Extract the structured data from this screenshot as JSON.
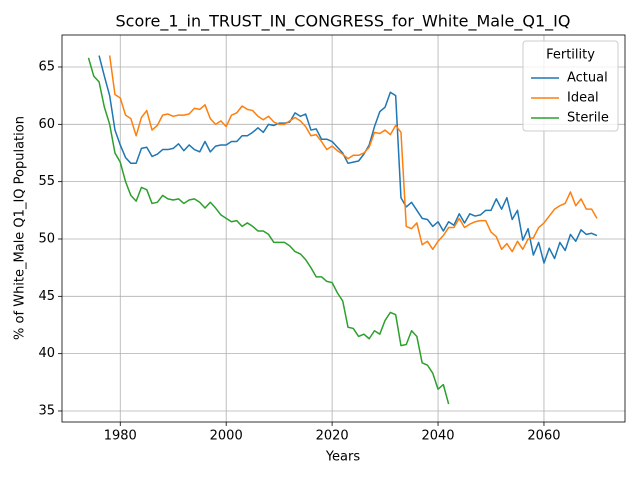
{
  "chart_data": {
    "type": "line",
    "title": "Score_1_in_TRUST_IN_CONGRESS_for_White_Male_Q1_IQ",
    "x_label": "Years",
    "y_label": "% of White_Male Q1_IQ Population",
    "legend_title": "Fertility",
    "legend_position": "upper right",
    "grid": true,
    "xlim": [
      1969,
      2075.3
    ],
    "ylim": [
      34.04,
      67.79
    ],
    "xticks": [
      1980,
      2000,
      2020,
      2040,
      2060
    ],
    "yticks": [
      35,
      40,
      45,
      50,
      55,
      60,
      65
    ],
    "x": [
      1974,
      1975,
      1976,
      1977,
      1978,
      1979,
      1980,
      1981,
      1982,
      1983,
      1984,
      1985,
      1986,
      1987,
      1988,
      1989,
      1990,
      1991,
      1992,
      1993,
      1994,
      1995,
      1996,
      1997,
      1998,
      1999,
      2000,
      2001,
      2002,
      2003,
      2004,
      2005,
      2006,
      2007,
      2008,
      2009,
      2010,
      2011,
      2012,
      2013,
      2014,
      2015,
      2016,
      2017,
      2018,
      2019,
      2020,
      2021,
      2022,
      2023,
      2024,
      2025,
      2026,
      2027,
      2028,
      2029,
      2030,
      2031,
      2032,
      2033,
      2034,
      2035,
      2036,
      2037,
      2038,
      2039,
      2040,
      2041,
      2042,
      2043,
      2044,
      2045,
      2046,
      2047,
      2048,
      2049,
      2050,
      2051,
      2052,
      2053,
      2054,
      2055,
      2056,
      2057,
      2058,
      2059,
      2060,
      2061,
      2062,
      2063,
      2064,
      2065,
      2066,
      2067,
      2068,
      2069,
      2070
    ],
    "series": [
      {
        "name": "Actual",
        "color": "#1f77b4",
        "values": [
          null,
          null,
          66.0,
          64.2,
          62.5,
          59.5,
          58.2,
          57.1,
          56.6,
          56.6,
          57.9,
          58.0,
          57.2,
          57.4,
          57.8,
          57.8,
          57.9,
          58.3,
          57.7,
          58.2,
          57.8,
          57.6,
          58.5,
          57.6,
          58.1,
          58.2,
          58.2,
          58.5,
          58.5,
          59.0,
          59.0,
          59.3,
          59.7,
          59.3,
          60.0,
          59.9,
          60.1,
          60.1,
          60.2,
          61.0,
          60.7,
          60.9,
          59.5,
          59.6,
          58.7,
          58.7,
          58.5,
          58.0,
          57.5,
          56.6,
          56.7,
          56.8,
          57.4,
          58.2,
          59.8,
          61.1,
          61.5,
          62.8,
          62.5,
          53.6,
          52.8,
          53.2,
          52.5,
          51.8,
          51.7,
          51.1,
          51.5,
          50.7,
          51.5,
          51.2,
          52.2,
          51.4,
          52.2,
          52.0,
          52.1,
          52.5,
          52.5,
          53.5,
          52.6,
          53.6,
          51.7,
          52.5,
          49.9,
          50.9,
          48.6,
          49.7,
          47.9,
          49.2,
          48.3,
          49.7,
          49.0,
          50.4,
          49.8,
          50.8,
          50.4,
          50.5,
          50.3
        ]
      },
      {
        "name": "Ideal",
        "color": "#ff7f0e",
        "values": [
          null,
          null,
          null,
          null,
          66.0,
          62.6,
          62.3,
          60.8,
          60.5,
          59.0,
          60.6,
          61.2,
          59.5,
          59.9,
          60.8,
          60.9,
          60.7,
          60.8,
          60.8,
          60.9,
          61.4,
          61.3,
          61.7,
          60.5,
          60.0,
          60.3,
          59.8,
          60.8,
          61.0,
          61.6,
          61.3,
          61.2,
          60.7,
          60.4,
          60.7,
          60.2,
          60.0,
          60.0,
          60.3,
          60.6,
          60.3,
          59.8,
          59.0,
          59.1,
          58.5,
          57.8,
          58.1,
          57.7,
          57.4,
          57.0,
          57.3,
          57.3,
          57.5,
          58.0,
          59.3,
          59.2,
          59.5,
          59.1,
          59.9,
          59.3,
          51.1,
          50.9,
          51.4,
          49.5,
          49.8,
          49.1,
          49.8,
          50.3,
          51.0,
          51.0,
          51.8,
          51.0,
          51.3,
          51.5,
          51.6,
          51.6,
          50.6,
          50.2,
          49.1,
          49.6,
          48.9,
          49.8,
          49.1,
          50.0,
          50.1,
          51.0,
          51.4,
          52.0,
          52.6,
          52.9,
          53.1,
          54.1,
          52.9,
          53.5,
          52.6,
          52.6,
          51.8
        ]
      },
      {
        "name": "Sterile",
        "color": "#2ca02c",
        "values": [
          65.8,
          64.2,
          63.7,
          61.5,
          60.0,
          57.5,
          56.7,
          55.0,
          53.8,
          53.3,
          54.5,
          54.3,
          53.1,
          53.2,
          53.8,
          53.5,
          53.4,
          53.5,
          53.1,
          53.4,
          53.5,
          53.2,
          52.7,
          53.2,
          52.7,
          52.1,
          51.8,
          51.5,
          51.6,
          51.1,
          51.4,
          51.1,
          50.7,
          50.7,
          50.4,
          49.7,
          49.7,
          49.7,
          49.4,
          48.9,
          48.7,
          48.2,
          47.5,
          46.7,
          46.7,
          46.3,
          46.2,
          45.3,
          44.6,
          42.3,
          42.2,
          41.5,
          41.7,
          41.3,
          42.0,
          41.7,
          42.9,
          43.6,
          43.4,
          40.7,
          40.8,
          42.0,
          41.5,
          39.2,
          39.0,
          38.3,
          36.9,
          37.3,
          35.6,
          null,
          null,
          null,
          null,
          null,
          null,
          null,
          null,
          null,
          null,
          null,
          null,
          null,
          null,
          null,
          null,
          null,
          null,
          null,
          null,
          null,
          null,
          null,
          null,
          null,
          null,
          null,
          null
        ]
      }
    ]
  }
}
